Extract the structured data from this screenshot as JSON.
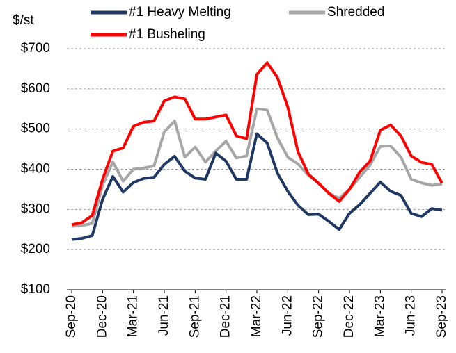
{
  "chart_data": {
    "type": "line",
    "y_label": "$/st",
    "categories": [
      "Sep-20",
      null,
      null,
      "Dec-20",
      null,
      null,
      "Mar-21",
      null,
      null,
      "Jun-21",
      null,
      null,
      "Sep-21",
      null,
      null,
      "Dec-21",
      null,
      null,
      "Mar-22",
      null,
      null,
      "Jun-22",
      null,
      null,
      "Sep-22",
      null,
      null,
      "Dec-22",
      null,
      null,
      "Mar-23",
      null,
      null,
      "Jun-23",
      null,
      null,
      "Sep-23"
    ],
    "series": [
      {
        "name": "#1 Heavy Melting",
        "color": "#1f3864",
        "values": [
          225,
          228,
          235,
          325,
          382,
          343,
          367,
          377,
          380,
          412,
          432,
          395,
          378,
          375,
          440,
          420,
          375,
          375,
          488,
          465,
          390,
          345,
          310,
          287,
          288,
          270,
          250,
          290,
          312,
          340,
          368,
          345,
          335,
          290,
          282,
          302,
          298
        ]
      },
      {
        "name": "Shredded",
        "color": "#a6a6a6",
        "values": [
          258,
          260,
          265,
          360,
          418,
          370,
          400,
          403,
          408,
          493,
          520,
          430,
          455,
          418,
          445,
          470,
          428,
          433,
          550,
          547,
          478,
          430,
          413,
          385,
          365,
          340,
          328,
          350,
          380,
          410,
          457,
          458,
          430,
          375,
          366,
          360,
          363
        ]
      },
      {
        "name": "#1 Busheling",
        "color": "#ff0000",
        "values": [
          262,
          267,
          285,
          375,
          445,
          453,
          507,
          517,
          520,
          570,
          580,
          575,
          525,
          525,
          530,
          535,
          483,
          476,
          636,
          665,
          628,
          555,
          443,
          388,
          365,
          340,
          320,
          350,
          393,
          420,
          497,
          510,
          483,
          433,
          417,
          412,
          365
        ]
      }
    ],
    "ylim": [
      100,
      700
    ],
    "yticks": [
      {
        "value": 100,
        "label": "$100"
      },
      {
        "value": 200,
        "label": "$200"
      },
      {
        "value": 300,
        "label": "$300"
      },
      {
        "value": 400,
        "label": "$400"
      },
      {
        "value": 500,
        "label": "$500"
      },
      {
        "value": 600,
        "label": "$600"
      },
      {
        "value": 700,
        "label": "$700"
      }
    ],
    "grid": true
  }
}
